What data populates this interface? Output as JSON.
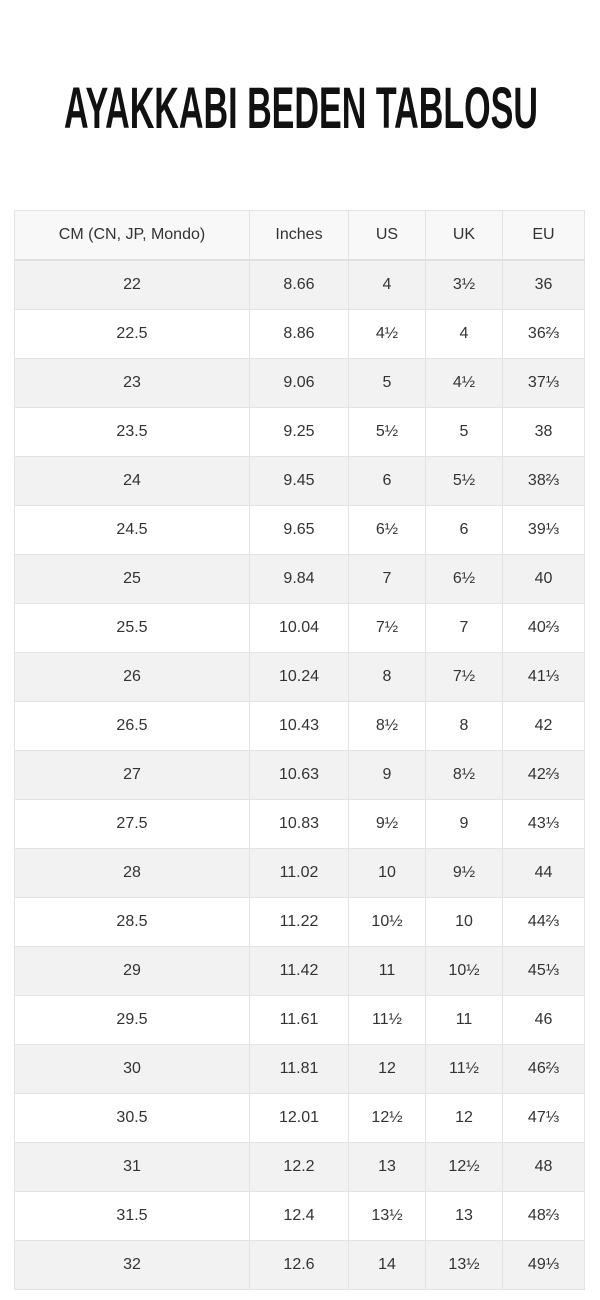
{
  "header": {
    "title": "AYAKKABI BEDEN TABLOSU"
  },
  "table": {
    "columns": [
      "CM (CN, JP, Mondo)",
      "Inches",
      "US",
      "UK",
      "EU"
    ],
    "rows": [
      [
        "22",
        "8.66",
        "4",
        "3½",
        "36"
      ],
      [
        "22.5",
        "8.86",
        "4½",
        "4",
        "36⅔"
      ],
      [
        "23",
        "9.06",
        "5",
        "4½",
        "37⅓"
      ],
      [
        "23.5",
        "9.25",
        "5½",
        "5",
        "38"
      ],
      [
        "24",
        "9.45",
        "6",
        "5½",
        "38⅔"
      ],
      [
        "24.5",
        "9.65",
        "6½",
        "6",
        "39⅓"
      ],
      [
        "25",
        "9.84",
        "7",
        "6½",
        "40"
      ],
      [
        "25.5",
        "10.04",
        "7½",
        "7",
        "40⅔"
      ],
      [
        "26",
        "10.24",
        "8",
        "7½",
        "41⅓"
      ],
      [
        "26.5",
        "10.43",
        "8½",
        "8",
        "42"
      ],
      [
        "27",
        "10.63",
        "9",
        "8½",
        "42⅔"
      ],
      [
        "27.5",
        "10.83",
        "9½",
        "9",
        "43⅓"
      ],
      [
        "28",
        "11.02",
        "10",
        "9½",
        "44"
      ],
      [
        "28.5",
        "11.22",
        "10½",
        "10",
        "44⅔"
      ],
      [
        "29",
        "11.42",
        "11",
        "10½",
        "45⅓"
      ],
      [
        "29.5",
        "11.61",
        "11½",
        "11",
        "46"
      ],
      [
        "30",
        "11.81",
        "12",
        "11½",
        "46⅔"
      ],
      [
        "30.5",
        "12.01",
        "12½",
        "12",
        "47⅓"
      ],
      [
        "31",
        "12.2",
        "13",
        "12½",
        "48"
      ],
      [
        "31.5",
        "12.4",
        "13½",
        "13",
        "48⅔"
      ],
      [
        "32",
        "12.6",
        "14",
        "13½",
        "49⅓"
      ]
    ]
  }
}
